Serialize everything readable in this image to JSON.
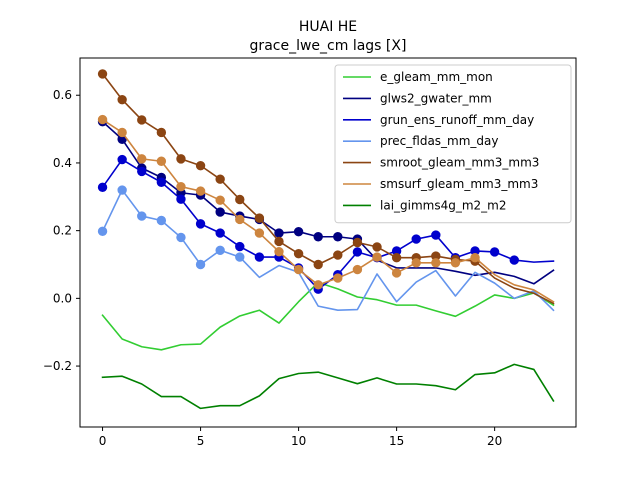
{
  "chart_data": {
    "type": "line",
    "title": "HUAI HE",
    "subtitle": "grace_lwe_cm lags [X]",
    "xlabel": "",
    "ylabel": "",
    "xlim": [
      -1.15,
      24.15
    ],
    "ylim": [
      -0.38,
      0.71
    ],
    "xticks": [
      0,
      5,
      10,
      15,
      20
    ],
    "yticks": [
      -0.2,
      0.0,
      0.2,
      0.4,
      0.6
    ],
    "ytick_labels": [
      "−0.2",
      "0.0",
      "0.2",
      "0.4",
      "0.6"
    ],
    "grid": false,
    "legend_position": "top-right",
    "x": [
      0,
      1,
      2,
      3,
      4,
      5,
      6,
      7,
      8,
      9,
      10,
      11,
      12,
      13,
      14,
      15,
      16,
      17,
      18,
      19,
      20,
      21,
      22,
      23
    ],
    "series": [
      {
        "name": "e_gleam_mm_mon",
        "color": "#32cd32",
        "values": [
          -0.05,
          -0.12,
          -0.143,
          -0.152,
          -0.137,
          -0.135,
          -0.085,
          -0.052,
          -0.035,
          -0.073,
          -0.01,
          0.047,
          0.028,
          0.004,
          -0.004,
          -0.02,
          -0.02,
          -0.037,
          -0.053,
          -0.023,
          0.01,
          0.0,
          0.016,
          -0.02
        ],
        "markers": []
      },
      {
        "name": "glws2_gwater_mm",
        "color": "#000080",
        "values": [
          0.522,
          0.47,
          0.385,
          0.357,
          0.312,
          0.305,
          0.255,
          0.243,
          0.233,
          0.193,
          0.197,
          0.182,
          0.182,
          0.175,
          0.113,
          0.09,
          0.09,
          0.09,
          0.08,
          0.068,
          0.077,
          0.065,
          0.043,
          0.083
        ],
        "markers": [
          0,
          1,
          2,
          3,
          4,
          5,
          6,
          7,
          8,
          9,
          10,
          11,
          12,
          13
        ]
      },
      {
        "name": "grun_ens_runoff_mm_day",
        "color": "#0000cd",
        "values": [
          0.328,
          0.41,
          0.375,
          0.343,
          0.293,
          0.22,
          0.193,
          0.153,
          0.122,
          0.122,
          0.09,
          0.027,
          0.07,
          0.137,
          0.12,
          0.14,
          0.175,
          0.187,
          0.12,
          0.14,
          0.137,
          0.113,
          0.107,
          0.11
        ],
        "markers": [
          0,
          1,
          2,
          3,
          4,
          5,
          6,
          7,
          8,
          9,
          10,
          11,
          12,
          13,
          14,
          15,
          16,
          17,
          18,
          19,
          20,
          21
        ]
      },
      {
        "name": "prec_fldas_mm_day",
        "color": "#6495ed",
        "values": [
          0.198,
          0.32,
          0.243,
          0.23,
          0.18,
          0.1,
          0.142,
          0.122,
          0.062,
          0.097,
          0.077,
          -0.023,
          -0.035,
          -0.033,
          0.072,
          -0.01,
          0.048,
          0.082,
          0.007,
          0.077,
          0.045,
          0.0,
          0.022,
          -0.035
        ],
        "markers": [
          0,
          1,
          2,
          3,
          4,
          5,
          6,
          7
        ]
      },
      {
        "name": "smroot_gleam_mm3_mm3",
        "color": "#8b4513",
        "values": [
          0.663,
          0.587,
          0.527,
          0.49,
          0.412,
          0.392,
          0.352,
          0.292,
          0.237,
          0.168,
          0.132,
          0.1,
          0.128,
          0.165,
          0.152,
          0.12,
          0.12,
          0.125,
          0.115,
          0.11,
          0.06,
          0.03,
          0.015,
          -0.015
        ],
        "markers": [
          0,
          1,
          2,
          3,
          4,
          5,
          6,
          7,
          8,
          9,
          10,
          11,
          12,
          13,
          14,
          15,
          16,
          17,
          18,
          19
        ]
      },
      {
        "name": "smsurf_gleam_mm3_mm3",
        "color": "#cd853f",
        "values": [
          0.528,
          0.49,
          0.412,
          0.405,
          0.33,
          0.317,
          0.29,
          0.233,
          0.193,
          0.138,
          0.085,
          0.04,
          0.06,
          0.085,
          0.122,
          0.075,
          0.105,
          0.105,
          0.105,
          0.12,
          0.07,
          0.04,
          0.025,
          -0.01
        ],
        "markers": [
          0,
          1,
          2,
          3,
          4,
          5,
          6,
          7,
          8,
          9,
          10,
          11,
          12,
          13,
          14,
          15,
          16,
          17,
          18,
          19
        ]
      },
      {
        "name": "lai_gimms4g_m2_m2",
        "color": "#008000",
        "values": [
          -0.233,
          -0.23,
          -0.253,
          -0.29,
          -0.29,
          -0.325,
          -0.317,
          -0.317,
          -0.288,
          -0.237,
          -0.222,
          -0.218,
          -0.235,
          -0.252,
          -0.235,
          -0.253,
          -0.253,
          -0.258,
          -0.27,
          -0.225,
          -0.22,
          -0.195,
          -0.21,
          -0.303
        ],
        "markers": []
      }
    ]
  }
}
